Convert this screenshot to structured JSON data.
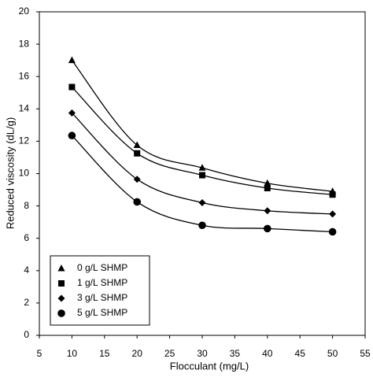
{
  "chart_data": {
    "type": "line",
    "x_label": "Flocculant (mg/L)",
    "y_label": "Reduced viscosity (dL/g)",
    "x": [
      10,
      20,
      30,
      40,
      50
    ],
    "series": [
      {
        "name": "0 g/L SHMP",
        "color": "#000000",
        "marker": "triangle",
        "values": [
          17.0,
          11.75,
          10.35,
          9.4,
          8.9
        ]
      },
      {
        "name": "1 g/L SHMP",
        "color": "#000000",
        "marker": "square",
        "values": [
          15.35,
          11.25,
          9.9,
          9.1,
          8.7
        ]
      },
      {
        "name": "3 g/L SHMP",
        "color": "#000000",
        "marker": "diamond",
        "values": [
          13.75,
          9.65,
          8.2,
          7.7,
          7.5
        ]
      },
      {
        "name": "5 g/L SHMP",
        "color": "#000000",
        "marker": "circle",
        "values": [
          12.35,
          8.25,
          6.8,
          6.6,
          6.4
        ]
      }
    ],
    "xlim": [
      5,
      55
    ],
    "xticks": [
      5,
      10,
      15,
      20,
      25,
      30,
      35,
      40,
      45,
      50,
      55
    ],
    "ylim": [
      0,
      20
    ],
    "yticks": [
      0,
      2,
      4,
      6,
      8,
      10,
      12,
      14,
      16,
      18,
      20
    ],
    "smooth": true,
    "legend": "lower-left"
  }
}
